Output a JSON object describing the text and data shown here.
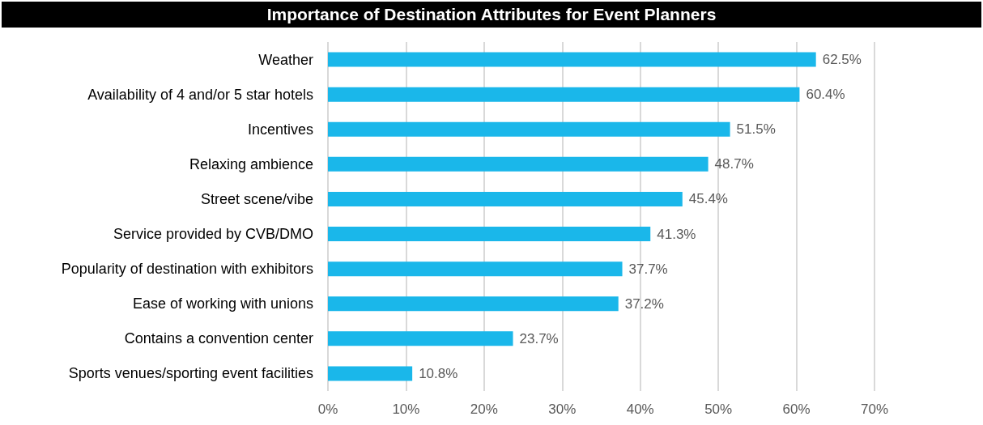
{
  "chart_data": {
    "type": "bar",
    "orientation": "horizontal",
    "title": "Importance of Destination Attributes for Event Planners",
    "categories": [
      "Weather",
      "Availability of 4 and/or 5 star hotels",
      "Incentives",
      "Relaxing ambience",
      "Street scene/vibe",
      "Service provided by CVB/DMO",
      "Popularity of destination with exhibitors",
      "Ease of working with unions",
      "Contains a convention center",
      "Sports venues/sporting event facilities"
    ],
    "values": [
      62.5,
      60.4,
      51.5,
      48.7,
      45.4,
      41.3,
      37.7,
      37.2,
      23.7,
      10.8
    ],
    "value_labels": [
      "62.5%",
      "60.4%",
      "51.5%",
      "48.7%",
      "45.4%",
      "41.3%",
      "37.7%",
      "37.2%",
      "23.7%",
      "10.8%"
    ],
    "color": "#1ab7ea",
    "xlim": [
      0,
      70
    ],
    "xticks": [
      {
        "value": 0,
        "label": "0%"
      },
      {
        "value": 10,
        "label": "10%"
      },
      {
        "value": 20,
        "label": "20%"
      },
      {
        "value": 30,
        "label": "30%"
      },
      {
        "value": 40,
        "label": "40%"
      },
      {
        "value": 50,
        "label": "50%"
      },
      {
        "value": 60,
        "label": "60%"
      },
      {
        "value": 70,
        "label": "70%"
      }
    ],
    "grid": "x"
  }
}
